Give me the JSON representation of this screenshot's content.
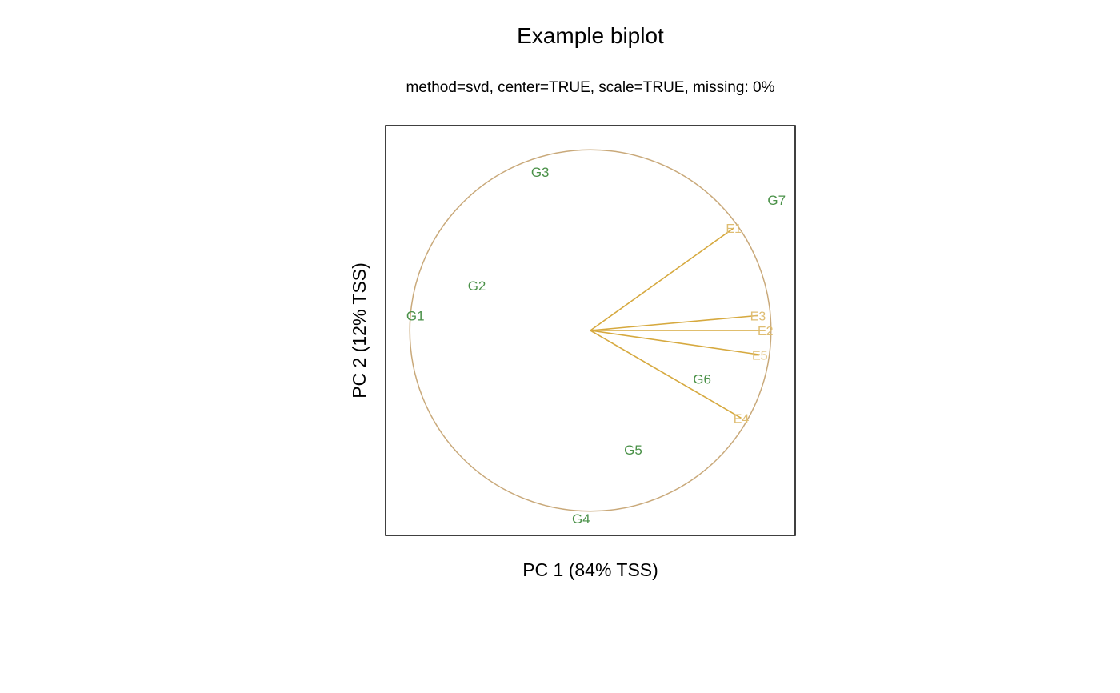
{
  "chart_data": {
    "type": "scatter",
    "title": "Example biplot",
    "subtitle": "method=svd, center=TRUE, scale=TRUE, missing: 0%",
    "xlabel": "PC 1 (84% TSS)",
    "ylabel": "PC 2 (12% TSS)",
    "xlim": [
      -1.1,
      1.1
    ],
    "ylim": [
      -1.1,
      1.1
    ],
    "grid": false,
    "colors": {
      "genotypes": "#4a9148",
      "environments": "#d6a93f",
      "environment_labels": "#dfbd72",
      "circle": "#c9a97a",
      "frame": "#000000"
    },
    "genotypes": [
      {
        "label": "G1",
        "x": -0.94,
        "y": 0.08
      },
      {
        "label": "G2",
        "x": -0.61,
        "y": 0.24
      },
      {
        "label": "G3",
        "x": -0.27,
        "y": 0.85
      },
      {
        "label": "G4",
        "x": -0.05,
        "y": -1.01
      },
      {
        "label": "G5",
        "x": 0.23,
        "y": -0.64
      },
      {
        "label": "G6",
        "x": 0.6,
        "y": -0.26
      },
      {
        "label": "G7",
        "x": 1.0,
        "y": 0.7
      }
    ],
    "environments": [
      {
        "label": "E1",
        "x": 0.77,
        "y": 0.55
      },
      {
        "label": "E2",
        "x": 0.94,
        "y": 0.0
      },
      {
        "label": "E3",
        "x": 0.9,
        "y": 0.08
      },
      {
        "label": "E4",
        "x": 0.81,
        "y": -0.47
      },
      {
        "label": "E5",
        "x": 0.91,
        "y": -0.13
      }
    ],
    "circle_radius": 0.97
  }
}
